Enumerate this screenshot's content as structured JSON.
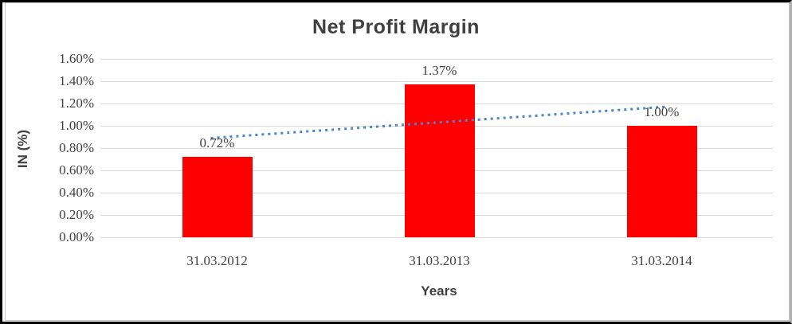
{
  "chart_data": {
    "type": "bar",
    "title": "Net Profit Margin",
    "xlabel": "Years",
    "ylabel": "IN (%)",
    "categories": [
      "31.03.2012",
      "31.03.2013",
      "31.03.2014"
    ],
    "values": [
      0.72,
      1.37,
      1.0
    ],
    "data_labels": [
      "0.72%",
      "1.37%",
      "1.00%"
    ],
    "ylim": [
      0,
      1.6
    ],
    "ytick_step": 0.2,
    "ytick_labels": [
      "0.00%",
      "0.20%",
      "0.40%",
      "0.60%",
      "0.80%",
      "1.00%",
      "1.20%",
      "1.40%",
      "1.60%"
    ],
    "grid": true,
    "legend": false,
    "bar_color": "#FF0000",
    "text_color": "#404040",
    "gridline_color": "#D9D9D9",
    "trendline": {
      "type": "linear",
      "style": "dotted",
      "color": "#4A86C8",
      "start_value": 0.89,
      "end_value": 1.17
    }
  }
}
